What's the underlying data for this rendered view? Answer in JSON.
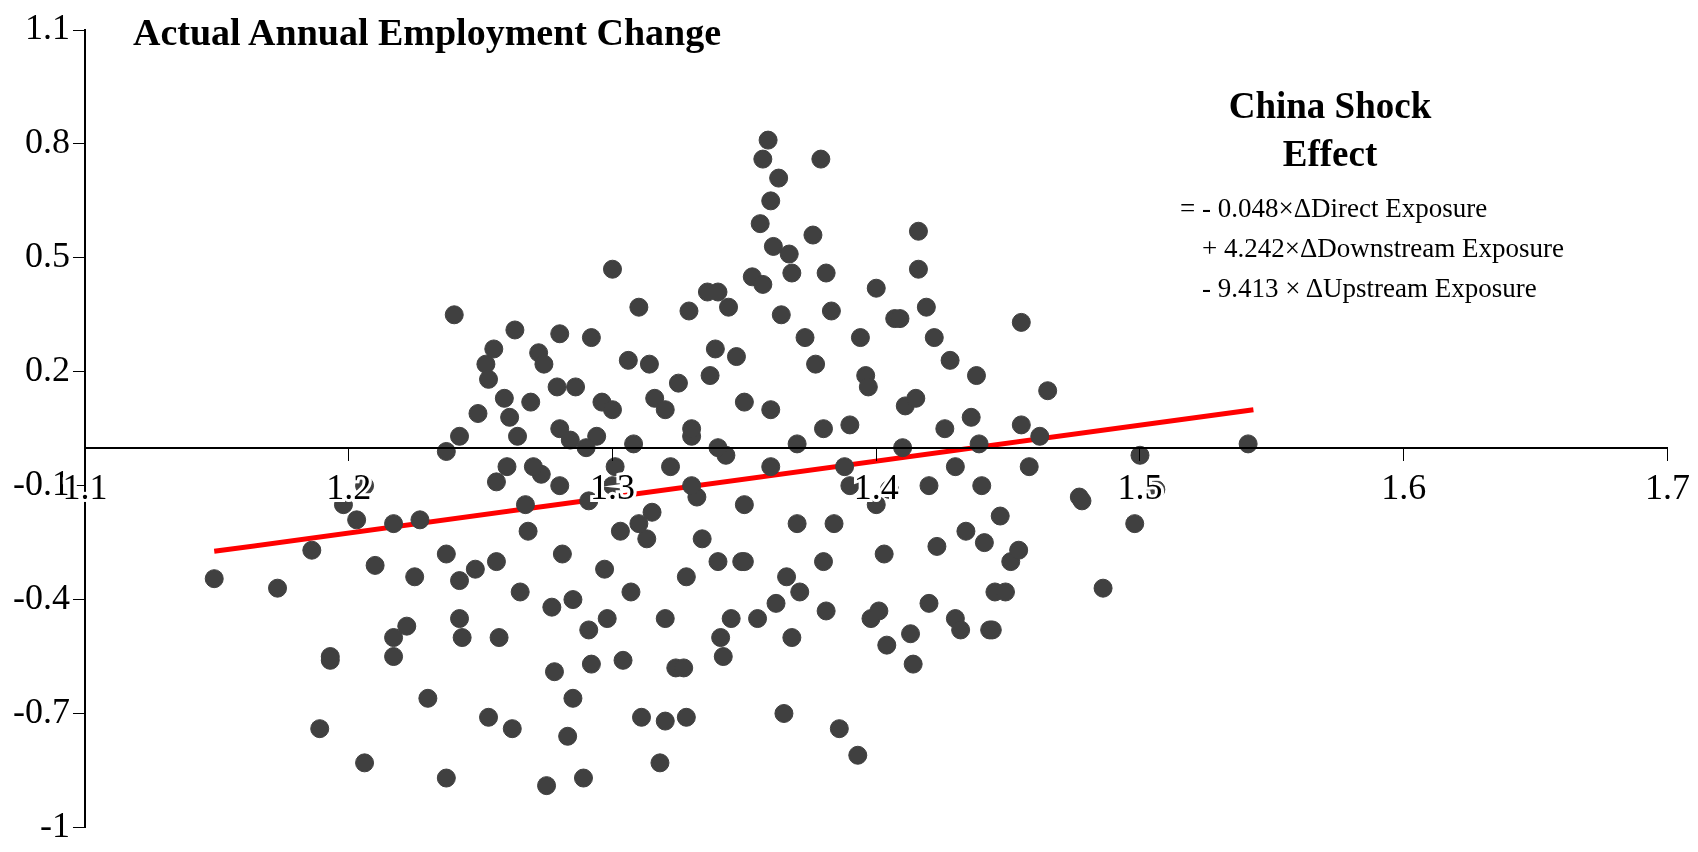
{
  "chart_data": {
    "type": "scatter",
    "ylabel": "Actual Annual Employment Change",
    "annotations": [
      "China Shock Effect",
      "= - 0.048×ΔDirect Exposure",
      "+ 4.242×ΔDownstream Exposure",
      "- 9.413 × ΔUpstream Exposure"
    ],
    "xlim": [
      1.1,
      1.7
    ],
    "xticks": [
      1.1,
      1.2,
      1.3,
      1.4,
      1.5,
      1.6,
      1.7
    ],
    "ylim": [
      -1,
      1.1
    ],
    "yticks": [
      {
        "value": -1,
        "label": "-1"
      },
      -0.7,
      -0.4,
      -0.1,
      0.2,
      0.5,
      0.8,
      1.1
    ],
    "series": [
      {
        "color": "#404040",
        "marker": "circle",
        "x": [
          1.149,
          1.173,
          1.186,
          1.189,
          1.193,
          1.193,
          1.198,
          1.203,
          1.206,
          1.206,
          1.21,
          1.217,
          1.217,
          1.217,
          1.222,
          1.225,
          1.227,
          1.23,
          1.237,
          1.237,
          1.24,
          1.242,
          1.237,
          1.242,
          1.242,
          1.243,
          1.248,
          1.249,
          1.252,
          1.253,
          1.255,
          1.256,
          1.259,
          1.261,
          1.263,
          1.264,
          1.256,
          1.257,
          1.253,
          1.262,
          1.265,
          1.267,
          1.268,
          1.269,
          1.272,
          1.274,
          1.273,
          1.275,
          1.277,
          1.278,
          1.28,
          1.279,
          1.28,
          1.281,
          1.283,
          1.284,
          1.285,
          1.285,
          1.286,
          1.289,
          1.291,
          1.291,
          1.292,
          1.292,
          1.294,
          1.296,
          1.297,
          1.298,
          1.3,
          1.301,
          1.303,
          1.304,
          1.306,
          1.307,
          1.308,
          1.31,
          1.311,
          1.313,
          1.314,
          1.315,
          1.316,
          1.318,
          1.32,
          1.32,
          1.322,
          1.324,
          1.325,
          1.327,
          1.328,
          1.329,
          1.328,
          1.33,
          1.332,
          1.334,
          1.336,
          1.337,
          1.339,
          1.34,
          1.341,
          1.342,
          1.343,
          1.344,
          1.345,
          1.347,
          1.349,
          1.35,
          1.353,
          1.355,
          1.356,
          1.357,
          1.357,
          1.359,
          1.36,
          1.361,
          1.362,
          1.363,
          1.364,
          1.366,
          1.365,
          1.367,
          1.368,
          1.368,
          1.37,
          1.371,
          1.373,
          1.376,
          1.377,
          1.379,
          1.381,
          1.381,
          1.383,
          1.384,
          1.386,
          1.388,
          1.39,
          1.393,
          1.394,
          1.396,
          1.397,
          1.398,
          1.4,
          1.401,
          1.403,
          1.404,
          1.405,
          1.407,
          1.409,
          1.411,
          1.413,
          1.414,
          1.415,
          1.416,
          1.416,
          1.419,
          1.42,
          1.422,
          1.423,
          1.426,
          1.428,
          1.43,
          1.432,
          1.434,
          1.436,
          1.438,
          1.439,
          1.441,
          1.443,
          1.444,
          1.445,
          1.447,
          1.449,
          1.451,
          1.454,
          1.455,
          1.455,
          1.458,
          1.462,
          1.465,
          1.477,
          1.478,
          1.486,
          1.5,
          1.498,
          1.506,
          1.541,
          1.27,
          1.28,
          1.29,
          1.3,
          1.31,
          1.32,
          1.33,
          1.34,
          1.35,
          1.36,
          1.37,
          1.38,
          1.39,
          1.4,
          1.41,
          1.42,
          1.43,
          1.3,
          1.34,
          1.36,
          1.38,
          1.26,
          1.44,
          1.33,
          1.35
        ],
        "values": [
          -0.345,
          -0.37,
          -0.27,
          -0.74,
          -0.55,
          -0.56,
          -0.15,
          -0.19,
          -0.1,
          -0.83,
          -0.31,
          -0.2,
          -0.5,
          -0.55,
          -0.47,
          -0.34,
          -0.19,
          -0.66,
          -0.87,
          -0.28,
          0.35,
          0.03,
          -0.01,
          -0.35,
          -0.45,
          -0.5,
          -0.32,
          0.09,
          0.22,
          0.18,
          0.26,
          -0.09,
          0.13,
          0.08,
          0.31,
          0.03,
          -0.3,
          -0.5,
          -0.71,
          -0.74,
          -0.38,
          -0.15,
          -0.22,
          0.12,
          0.25,
          0.22,
          -0.07,
          -0.89,
          -0.42,
          -0.59,
          0.3,
          0.16,
          0.05,
          -0.28,
          -0.76,
          0.02,
          -0.66,
          -0.4,
          0.16,
          -0.87,
          -0.48,
          -0.14,
          0.29,
          -0.57,
          0.03,
          0.12,
          -0.32,
          -0.45,
          0.47,
          -0.05,
          -0.22,
          -0.56,
          0.23,
          -0.38,
          0.01,
          0.37,
          -0.71,
          -0.24,
          0.22,
          -0.17,
          0.13,
          -0.83,
          -0.72,
          -0.45,
          -0.05,
          -0.58,
          0.17,
          -0.58,
          -0.71,
          0.36,
          -0.34,
          0.03,
          -0.13,
          -0.24,
          0.41,
          0.19,
          0.26,
          0.41,
          -0.5,
          -0.55,
          -0.02,
          0.37,
          -0.45,
          0.24,
          -0.3,
          0.12,
          0.45,
          -0.45,
          0.59,
          0.43,
          0.76,
          0.81,
          0.65,
          0.53,
          -0.41,
          0.71,
          0.35,
          -0.34,
          -0.7,
          0.51,
          0.46,
          -0.5,
          0.01,
          -0.38,
          0.29,
          0.56,
          0.22,
          0.76,
          -0.43,
          0.46,
          0.36,
          -0.2,
          -0.74,
          -0.05,
          0.06,
          -0.81,
          0.29,
          0.19,
          0.16,
          -0.45,
          0.42,
          -0.43,
          -0.28,
          -0.52,
          -0.11,
          0.34,
          0.34,
          0.11,
          -0.49,
          -0.57,
          0.13,
          0.57,
          0.47,
          0.37,
          -0.41,
          0.29,
          -0.26,
          0.05,
          0.23,
          -0.45,
          -0.48,
          -0.22,
          0.08,
          0.19,
          0.01,
          -0.25,
          -0.48,
          -0.48,
          -0.38,
          -0.18,
          -0.38,
          -0.3,
          -0.27,
          0.06,
          0.33,
          -0.05,
          0.03,
          0.15,
          -0.13,
          -0.14,
          -0.37,
          -0.02,
          -0.2,
          -0.11,
          0.01,
          -0.05,
          -0.1,
          0,
          -0.1,
          -0.2,
          0.1,
          -0.1,
          0,
          -0.15,
          -0.05,
          -0.2,
          0.05,
          -0.1,
          -0.15,
          0,
          -0.1,
          -0.05,
          0.1,
          -0.3,
          0.1,
          -0.3,
          -0.05,
          -0.1,
          0.05,
          -0.3
        ]
      },
      {
        "type": "line",
        "marker": "none",
        "color": "#ff0000",
        "x": [
          1.149,
          1.543
        ],
        "values": [
          -0.273,
          0.1
        ]
      }
    ]
  }
}
